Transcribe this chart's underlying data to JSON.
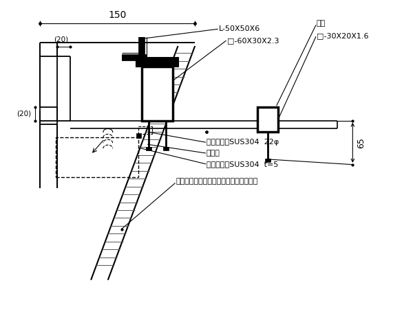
{
  "bg_color": "#ffffff",
  "annotations": {
    "dim_150": "150",
    "dim_20_top": "(20)",
    "dim_20_left": "(20)",
    "dim_65": "65",
    "label_L": "L-50X50X6",
    "label_box60": "□-60X30X2.3",
    "label_yosetsu": "溶接",
    "label_box30": "□-30X20X1.6",
    "label_sus1": "ステンレスSUS304  22φ",
    "label_tomezai": "止め材",
    "label_sus2": "ステンレスSUS304  t=5",
    "label_concrete": "コンクリート打放しの上（指定仕上材）"
  }
}
